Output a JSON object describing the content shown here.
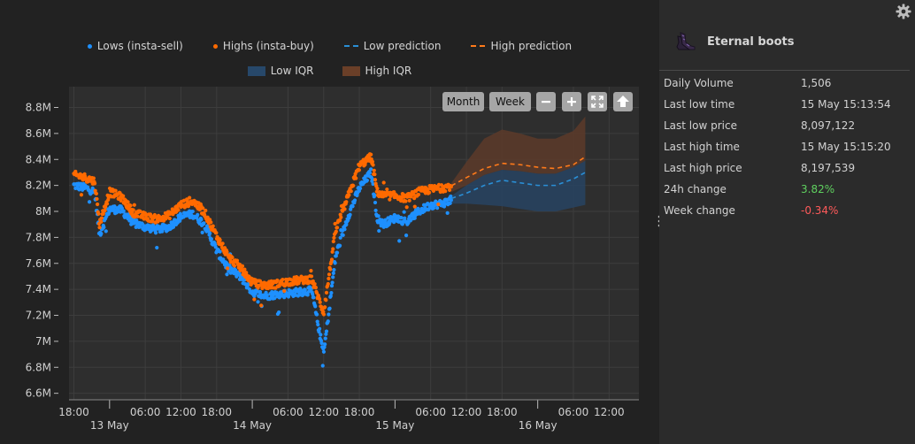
{
  "legend": {
    "row1": [
      {
        "label": "Lows (insta-sell)",
        "kind": "dot",
        "color": "#1e90ff"
      },
      {
        "label": "Highs (insta-buy)",
        "kind": "dot",
        "color": "#ff6a00"
      },
      {
        "label": "Low prediction",
        "kind": "dash",
        "color": "#2a8fd6"
      },
      {
        "label": "High prediction",
        "kind": "dash",
        "color": "#ff7a1a"
      }
    ],
    "row2": [
      {
        "label": "Low IQR",
        "kind": "box",
        "color": "#27486a"
      },
      {
        "label": "High IQR",
        "kind": "box",
        "color": "#6a3f28"
      }
    ]
  },
  "toolbar": {
    "month_label": "Month",
    "week_label": "Week",
    "zoom_out_icon": "minus-icon",
    "zoom_in_icon": "plus-icon",
    "reset_icon": "fit-icon",
    "home_icon": "home-icon"
  },
  "item": {
    "name": "Eternal boots",
    "icon": "boots-icon"
  },
  "stats": [
    {
      "label": "Daily Volume",
      "value": "1,506",
      "tone": ""
    },
    {
      "label": "Last low time",
      "value": "15 May 15:13:54",
      "tone": ""
    },
    {
      "label": "Last low price",
      "value": "8,097,122",
      "tone": ""
    },
    {
      "label": "Last high time",
      "value": "15 May 15:15:20",
      "tone": ""
    },
    {
      "label": "Last high price",
      "value": "8,197,539",
      "tone": ""
    },
    {
      "label": "24h change",
      "value": "3.82%",
      "tone": "pos"
    },
    {
      "label": "Week change",
      "value": "-0.34%",
      "tone": "neg"
    }
  ],
  "chart_data": {
    "type": "scatter",
    "ylim": [
      6550000,
      8960000
    ],
    "xlim_hours": [
      -0.5,
      79
    ],
    "y_ticks": [
      {
        "v": 6600000,
        "label": "6.6M"
      },
      {
        "v": 6800000,
        "label": "6.8M"
      },
      {
        "v": 7000000,
        "label": "7M"
      },
      {
        "v": 7200000,
        "label": "7.2M"
      },
      {
        "v": 7400000,
        "label": "7.4M"
      },
      {
        "v": 7600000,
        "label": "7.6M"
      },
      {
        "v": 7800000,
        "label": "7.8M"
      },
      {
        "v": 8000000,
        "label": "8M"
      },
      {
        "v": 8200000,
        "label": "8.2M"
      },
      {
        "v": 8400000,
        "label": "8.4M"
      },
      {
        "v": 8600000,
        "label": "8.6M"
      },
      {
        "v": 8800000,
        "label": "8.8M"
      }
    ],
    "x_ticks": [
      {
        "h": 0,
        "label": "18:00"
      },
      {
        "h": 12,
        "label": "06:00"
      },
      {
        "h": 18,
        "label": "12:00"
      },
      {
        "h": 24,
        "label": "18:00"
      },
      {
        "h": 36,
        "label": "06:00"
      },
      {
        "h": 42,
        "label": "12:00"
      },
      {
        "h": 48,
        "label": "18:00"
      },
      {
        "h": 60,
        "label": "06:00"
      },
      {
        "h": 66,
        "label": "12:00"
      },
      {
        "h": 72,
        "label": "18:00"
      },
      {
        "h": 84,
        "label": "06:00"
      },
      {
        "h": 90,
        "label": "12:00"
      }
    ],
    "day_ticks": [
      {
        "h": 6,
        "label": "13 May"
      },
      {
        "h": 30,
        "label": "14 May"
      },
      {
        "h": 54,
        "label": "15 May"
      },
      {
        "h": 78,
        "label": "16 May"
      }
    ],
    "x_ticks_visible_max": 95,
    "series": [
      {
        "name": "Lows (insta-sell)",
        "color": "#1e90ff",
        "anchors": [
          [
            0,
            8200000
          ],
          [
            2,
            8180000
          ],
          [
            3.5,
            8150000
          ],
          [
            4.3,
            7820000
          ],
          [
            6,
            8020000
          ],
          [
            8,
            8010000
          ],
          [
            10,
            7910000
          ],
          [
            12,
            7880000
          ],
          [
            14,
            7860000
          ],
          [
            16,
            7880000
          ],
          [
            18,
            7960000
          ],
          [
            20,
            7980000
          ],
          [
            22,
            7900000
          ],
          [
            24,
            7700000
          ],
          [
            26,
            7560000
          ],
          [
            28,
            7500000
          ],
          [
            30,
            7380000
          ],
          [
            32,
            7350000
          ],
          [
            34,
            7360000
          ],
          [
            36,
            7370000
          ],
          [
            38,
            7380000
          ],
          [
            40,
            7390000
          ],
          [
            42,
            6900000
          ],
          [
            44,
            7650000
          ],
          [
            46,
            7950000
          ],
          [
            48,
            8180000
          ],
          [
            50,
            8300000
          ],
          [
            51,
            7950000
          ],
          [
            52,
            7900000
          ],
          [
            54,
            7950000
          ],
          [
            56,
            7920000
          ],
          [
            58,
            8000000
          ],
          [
            60,
            8050000
          ],
          [
            62,
            8060000
          ],
          [
            63.5,
            8090000
          ]
        ]
      },
      {
        "name": "Highs (insta-buy)",
        "color": "#ff6a00",
        "anchors": [
          [
            0,
            8280000
          ],
          [
            2,
            8260000
          ],
          [
            3.5,
            8230000
          ],
          [
            4.3,
            7900000
          ],
          [
            6,
            8150000
          ],
          [
            8,
            8110000
          ],
          [
            10,
            7990000
          ],
          [
            12,
            7960000
          ],
          [
            14,
            7940000
          ],
          [
            16,
            7970000
          ],
          [
            18,
            8050000
          ],
          [
            20,
            8080000
          ],
          [
            22,
            7990000
          ],
          [
            24,
            7810000
          ],
          [
            26,
            7650000
          ],
          [
            28,
            7570000
          ],
          [
            30,
            7450000
          ],
          [
            32,
            7430000
          ],
          [
            34,
            7440000
          ],
          [
            36,
            7460000
          ],
          [
            38,
            7470000
          ],
          [
            40,
            7480000
          ],
          [
            42,
            7220000
          ],
          [
            44,
            7850000
          ],
          [
            46,
            8100000
          ],
          [
            48,
            8350000
          ],
          [
            50,
            8420000
          ],
          [
            51,
            8150000
          ],
          [
            52,
            8120000
          ],
          [
            54,
            8120000
          ],
          [
            56,
            8100000
          ],
          [
            58,
            8150000
          ],
          [
            60,
            8170000
          ],
          [
            62,
            8180000
          ],
          [
            63.5,
            8197539
          ]
        ]
      }
    ],
    "low_prediction": [
      [
        63.5,
        8100000
      ],
      [
        66,
        8140000
      ],
      [
        69,
        8200000
      ],
      [
        72,
        8240000
      ],
      [
        75,
        8220000
      ],
      [
        78,
        8200000
      ],
      [
        81,
        8200000
      ],
      [
        84,
        8250000
      ],
      [
        86,
        8300000
      ]
    ],
    "high_prediction": [
      [
        63.5,
        8197539
      ],
      [
        66,
        8260000
      ],
      [
        69,
        8330000
      ],
      [
        72,
        8370000
      ],
      [
        75,
        8360000
      ],
      [
        78,
        8340000
      ],
      [
        81,
        8330000
      ],
      [
        84,
        8360000
      ],
      [
        86,
        8420000
      ]
    ],
    "low_iqr": {
      "lower": [
        [
          63.5,
          8060000
        ],
        [
          66,
          8060000
        ],
        [
          69,
          8050000
        ],
        [
          72,
          8040000
        ],
        [
          75,
          8020000
        ],
        [
          78,
          8000000
        ],
        [
          81,
          8000000
        ],
        [
          84,
          8030000
        ],
        [
          86,
          8050000
        ]
      ],
      "upper": [
        [
          63.5,
          8120000
        ],
        [
          66,
          8200000
        ],
        [
          69,
          8280000
        ],
        [
          72,
          8320000
        ],
        [
          75,
          8310000
        ],
        [
          78,
          8290000
        ],
        [
          81,
          8290000
        ],
        [
          84,
          8340000
        ],
        [
          86,
          8390000
        ]
      ]
    },
    "high_iqr": {
      "lower": [
        [
          63.5,
          8150000
        ],
        [
          66,
          8200000
        ],
        [
          69,
          8280000
        ],
        [
          72,
          8320000
        ],
        [
          75,
          8310000
        ],
        [
          78,
          8290000
        ],
        [
          81,
          8290000
        ],
        [
          84,
          8340000
        ],
        [
          86,
          8390000
        ]
      ],
      "upper": [
        [
          63.5,
          8220000
        ],
        [
          66,
          8380000
        ],
        [
          69,
          8560000
        ],
        [
          72,
          8630000
        ],
        [
          75,
          8600000
        ],
        [
          78,
          8560000
        ],
        [
          81,
          8560000
        ],
        [
          84,
          8620000
        ],
        [
          86,
          8730000
        ]
      ]
    }
  },
  "colors": {
    "chart_bg": "#2e2e2e",
    "grid": "#3d3d3d",
    "low": "#1e90ff",
    "high": "#ff6a00",
    "positive": "#5fd05f",
    "negative": "#ff5a5a"
  }
}
